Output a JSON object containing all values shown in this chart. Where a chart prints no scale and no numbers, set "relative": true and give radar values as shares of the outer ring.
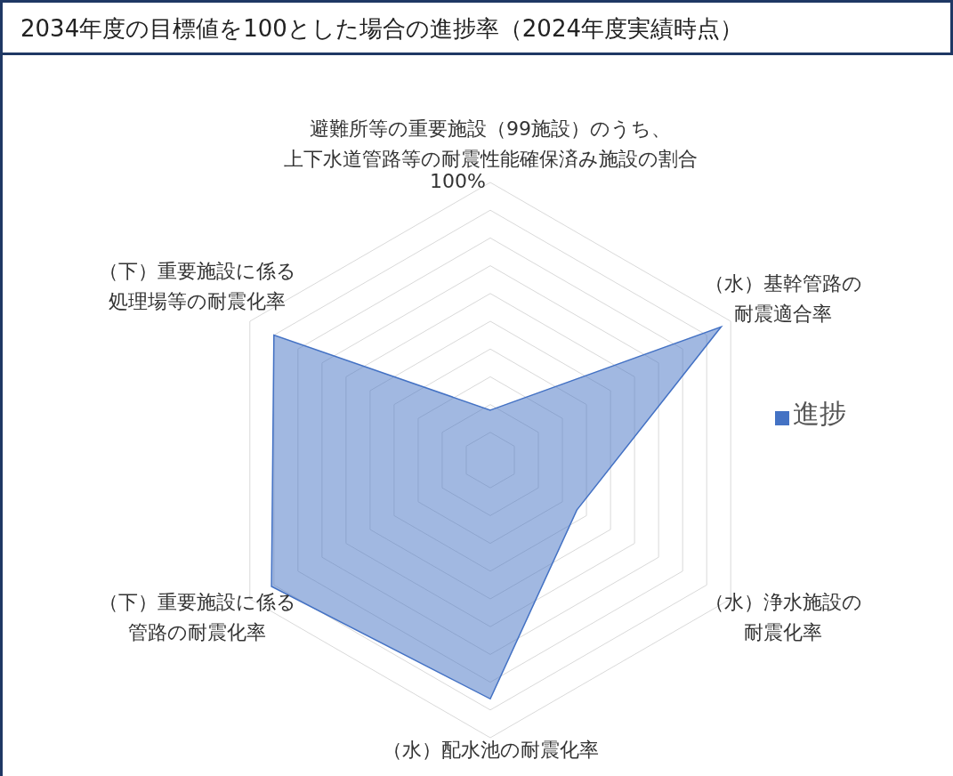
{
  "chart_data": {
    "type": "radar",
    "title": "2034年度の目標値を100とした場合の進捗率（2024年度実績時点）",
    "categories": [
      "避難所等の重要施設（99施設）のうち、上下水道管路等の耐震性能確保済み施設の割合",
      "（水）基幹管路の耐震適合率",
      "（水）浄水施設の耐震化率",
      "（水）配水池の耐震化率",
      "（下）重要施設に係る管路の耐震化率",
      "（下）重要施設に係る処理場等の耐震化率"
    ],
    "series": [
      {
        "name": "進捗",
        "color": "#4472c4",
        "values": [
          0.18,
          0.96,
          0.36,
          0.86,
          0.91,
          0.9
        ]
      }
    ],
    "relative": true,
    "grid": true,
    "legend": "right",
    "marker": "none",
    "annotations": [
      "100%"
    ]
  }
}
